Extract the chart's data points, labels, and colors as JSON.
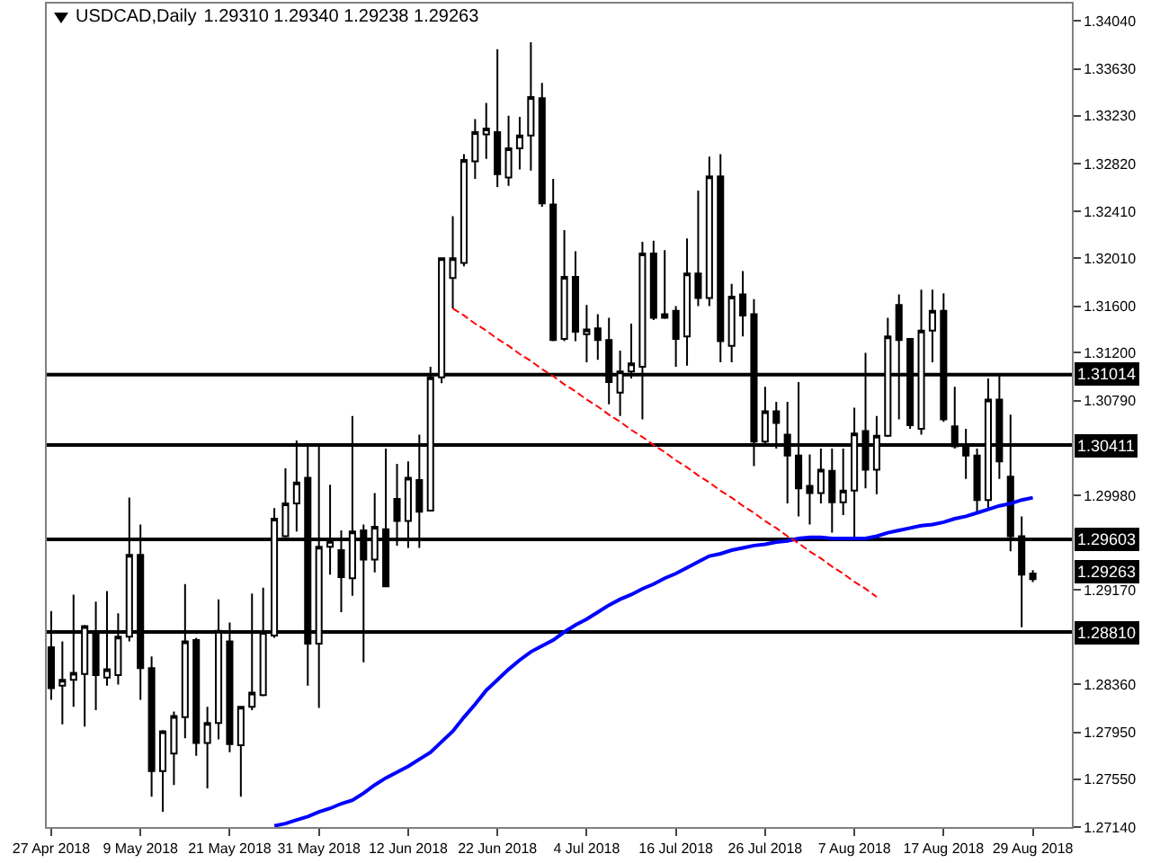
{
  "chart_data": {
    "type": "candlestick",
    "title": "USDCAD,Daily",
    "subtitle": "1.29310 1.29340 1.29238 1.29263",
    "categories": [
      "27 Apr 2018",
      null,
      null,
      null,
      null,
      null,
      null,
      null,
      "9 May 2018",
      null,
      null,
      null,
      null,
      null,
      null,
      null,
      "21 May 2018",
      null,
      null,
      null,
      null,
      null,
      null,
      null,
      "31 May 2018",
      null,
      null,
      null,
      null,
      null,
      null,
      null,
      "12 Jun 2018",
      null,
      null,
      null,
      null,
      null,
      null,
      null,
      "22 Jun 2018",
      null,
      null,
      null,
      null,
      null,
      null,
      null,
      "4 Jul 2018",
      null,
      null,
      null,
      null,
      null,
      null,
      null,
      "16 Jul 2018",
      null,
      null,
      null,
      null,
      null,
      null,
      null,
      "26 Jul 2018",
      null,
      null,
      null,
      null,
      null,
      null,
      null,
      "7 Aug 2018",
      null,
      null,
      null,
      null,
      null,
      null,
      null,
      "17 Aug 2018",
      null,
      null,
      null,
      null,
      null,
      null,
      null,
      "29 Aug 2018"
    ],
    "ohlc": [
      [
        1.2868,
        1.2899,
        1.2823,
        1.2833
      ],
      [
        1.2835,
        1.2873,
        1.2802,
        1.284
      ],
      [
        1.284,
        1.2913,
        1.2817,
        1.2846
      ],
      [
        1.2845,
        1.2887,
        1.28,
        1.2886
      ],
      [
        1.2879,
        1.2907,
        1.2814,
        1.2844
      ],
      [
        1.2842,
        1.2916,
        1.2835,
        1.2849
      ],
      [
        1.2844,
        1.2897,
        1.2836,
        1.2877
      ],
      [
        1.2877,
        1.2996,
        1.2873,
        1.2947
      ],
      [
        1.2947,
        1.2973,
        1.2823,
        1.285
      ],
      [
        1.285,
        1.286,
        1.274,
        1.2762
      ],
      [
        1.2762,
        1.2797,
        1.2727,
        1.2796
      ],
      [
        1.2777,
        1.2813,
        1.275,
        1.2809
      ],
      [
        1.2808,
        1.2922,
        1.279,
        1.2873
      ],
      [
        1.2874,
        1.2876,
        1.2775,
        1.2786
      ],
      [
        1.2786,
        1.2817,
        1.2747,
        1.2803
      ],
      [
        1.2803,
        1.2909,
        1.2789,
        1.2882
      ],
      [
        1.2873,
        1.2889,
        1.2778,
        1.2785
      ],
      [
        1.2784,
        1.2817,
        1.274,
        1.2817
      ],
      [
        1.2817,
        1.2914,
        1.2814,
        1.2829
      ],
      [
        1.2827,
        1.2919,
        1.2826,
        1.2881
      ],
      [
        1.2878,
        1.2987,
        1.2876,
        1.2978
      ],
      [
        1.2963,
        1.3021,
        1.2962,
        1.2991
      ],
      [
        1.2991,
        1.3045,
        1.2967,
        1.3009
      ],
      [
        1.3013,
        1.304,
        1.2835,
        1.2871
      ],
      [
        1.2871,
        1.304,
        1.2816,
        1.2954
      ],
      [
        1.2954,
        1.3007,
        1.293,
        1.2959
      ],
      [
        1.2951,
        1.2968,
        1.2898,
        1.2928
      ],
      [
        1.2927,
        1.3066,
        1.2912,
        1.2967
      ],
      [
        1.2968,
        1.2973,
        1.2855,
        1.2943
      ],
      [
        1.2943,
        1.3,
        1.2932,
        1.2971
      ],
      [
        1.2969,
        1.3038,
        1.292,
        1.292
      ],
      [
        1.2995,
        1.3025,
        1.2955,
        1.2976
      ],
      [
        1.2976,
        1.3027,
        1.2953,
        1.3013
      ],
      [
        1.3011,
        1.305,
        1.2953,
        1.2984
      ],
      [
        1.2985,
        1.3108,
        1.2985,
        1.3099
      ],
      [
        1.3099,
        1.3201,
        1.3094,
        1.3201
      ],
      [
        1.3184,
        1.3237,
        1.3158,
        1.3201
      ],
      [
        1.3197,
        1.329,
        1.3194,
        1.3285
      ],
      [
        1.3284,
        1.332,
        1.3269,
        1.3309
      ],
      [
        1.3307,
        1.3334,
        1.3286,
        1.3312
      ],
      [
        1.3309,
        1.338,
        1.3262,
        1.3273
      ],
      [
        1.327,
        1.3323,
        1.3263,
        1.3295
      ],
      [
        1.3295,
        1.3322,
        1.3277,
        1.3306
      ],
      [
        1.3306,
        1.3386,
        1.3276,
        1.3339
      ],
      [
        1.3338,
        1.3351,
        1.3245,
        1.3248
      ],
      [
        1.3247,
        1.3269,
        1.313,
        1.3131
      ],
      [
        1.3132,
        1.3225,
        1.313,
        1.3185
      ],
      [
        1.3185,
        1.3207,
        1.313,
        1.3138
      ],
      [
        1.3136,
        1.3161,
        1.3112,
        1.314
      ],
      [
        1.3141,
        1.3153,
        1.3114,
        1.3131
      ],
      [
        1.3131,
        1.315,
        1.3076,
        1.3095
      ],
      [
        1.3086,
        1.3122,
        1.3066,
        1.3104
      ],
      [
        1.3104,
        1.3145,
        1.3098,
        1.3111
      ],
      [
        1.3108,
        1.3215,
        1.3063,
        1.3205
      ],
      [
        1.3205,
        1.3216,
        1.3148,
        1.315
      ],
      [
        1.3153,
        1.3208,
        1.3149,
        1.315
      ],
      [
        1.3156,
        1.316,
        1.3108,
        1.3132
      ],
      [
        1.3134,
        1.3218,
        1.3109,
        1.3188
      ],
      [
        1.3188,
        1.3259,
        1.316,
        1.3167
      ],
      [
        1.3167,
        1.3288,
        1.316,
        1.3271
      ],
      [
        1.3271,
        1.329,
        1.3112,
        1.313
      ],
      [
        1.3126,
        1.3179,
        1.3112,
        1.3168
      ],
      [
        1.317,
        1.319,
        1.3134,
        1.3152
      ],
      [
        1.3153,
        1.3166,
        1.3023,
        1.3044
      ],
      [
        1.3044,
        1.3091,
        1.304,
        1.307
      ],
      [
        1.307,
        1.3078,
        1.3038,
        1.306
      ],
      [
        1.305,
        1.3078,
        1.2991,
        1.3032
      ],
      [
        1.3032,
        1.3095,
        1.298,
        1.3004
      ],
      [
        1.3006,
        1.3033,
        1.2973,
        1.3
      ],
      [
        1.3,
        1.3038,
        1.2991,
        1.302
      ],
      [
        1.3019,
        1.3038,
        1.2966,
        1.2992
      ],
      [
        1.2992,
        1.3038,
        1.2981,
        1.3002
      ],
      [
        1.3002,
        1.3073,
        1.2961,
        1.3051
      ],
      [
        1.3053,
        1.312,
        1.3004,
        1.302
      ],
      [
        1.302,
        1.3066,
        1.2999,
        1.3049
      ],
      [
        1.3049,
        1.315,
        1.3048,
        1.3134
      ],
      [
        1.3161,
        1.317,
        1.3063,
        1.3131
      ],
      [
        1.3132,
        1.3132,
        1.3055,
        1.3058
      ],
      [
        1.3055,
        1.3174,
        1.305,
        1.3139
      ],
      [
        1.3139,
        1.3174,
        1.3112,
        1.3156
      ],
      [
        1.3156,
        1.3171,
        1.3061,
        1.3063
      ],
      [
        1.3057,
        1.3091,
        1.3038,
        1.304
      ],
      [
        1.304,
        1.3055,
        1.3012,
        1.3032
      ],
      [
        1.3032,
        1.3038,
        1.2984,
        1.2994
      ],
      [
        1.2994,
        1.3098,
        1.2986,
        1.308
      ],
      [
        1.308,
        1.3102,
        1.3012,
        1.3027
      ],
      [
        1.3014,
        1.3067,
        1.295,
        1.2963
      ],
      [
        1.2963,
        1.298,
        1.2885,
        1.293
      ],
      [
        1.2931,
        1.2934,
        1.29238,
        1.29263
      ]
    ],
    "series": [
      {
        "type": "line",
        "color": "#0000ff",
        "line_style": "solid",
        "values": [
          null,
          null,
          null,
          null,
          null,
          null,
          null,
          null,
          null,
          null,
          null,
          null,
          null,
          null,
          null,
          null,
          null,
          null,
          null,
          null,
          1.2715,
          1.2717,
          1.272,
          1.2723,
          1.2727,
          1.273,
          1.2734,
          1.2737,
          1.2743,
          1.275,
          1.2756,
          1.2761,
          1.2766,
          1.2772,
          1.2778,
          1.2787,
          1.2796,
          1.2808,
          1.2819,
          1.2831,
          1.284,
          1.2849,
          1.2857,
          1.2864,
          1.2869,
          1.2874,
          1.2881,
          1.2887,
          1.2892,
          1.2898,
          1.2904,
          1.2909,
          1.2913,
          1.2918,
          1.2922,
          1.2927,
          1.2931,
          1.2936,
          1.2941,
          1.2946,
          1.2948,
          1.2951,
          1.2953,
          1.2955,
          1.2956,
          1.2958,
          1.2959,
          1.2961,
          1.2962,
          1.2962,
          1.2961,
          1.2961,
          1.2961,
          1.2961,
          1.2963,
          1.2966,
          1.2968,
          1.297,
          1.2972,
          1.2973,
          1.2975,
          1.2978,
          1.298,
          1.2983,
          1.2986,
          1.2989,
          1.2991,
          1.2994,
          1.2996
        ]
      },
      {
        "type": "line",
        "color": "#ff0000",
        "line_style": "dashed",
        "values": [
          null,
          null,
          null,
          null,
          null,
          null,
          null,
          null,
          null,
          null,
          null,
          null,
          null,
          null,
          null,
          null,
          null,
          null,
          null,
          null,
          null,
          null,
          null,
          null,
          null,
          null,
          null,
          null,
          null,
          null,
          null,
          null,
          null,
          null,
          null,
          null,
          1.3158,
          1.3152,
          1.3145,
          1.3139,
          1.3132,
          1.3126,
          1.3119,
          1.3113,
          1.3106,
          1.31,
          1.3093,
          1.3087,
          1.308,
          1.3074,
          1.3067,
          1.3061,
          1.3054,
          1.3048,
          1.3041,
          1.3035,
          1.3028,
          1.3022,
          1.3015,
          1.3009,
          1.3002,
          1.2996,
          1.2989,
          1.2983,
          1.2976,
          1.297,
          1.2963,
          1.2957,
          1.295,
          1.2944,
          1.2937,
          1.2931,
          1.2924,
          1.2918,
          1.2911,
          null,
          null,
          null,
          null,
          null,
          null,
          null,
          null,
          null,
          null,
          null,
          null,
          null,
          null
        ]
      }
    ],
    "ylim": [
      1.2714,
      1.3419
    ],
    "yticks": [
      {
        "value": 1.3404,
        "label": "1.34040"
      },
      {
        "value": 1.3363,
        "label": "1.33630"
      },
      {
        "value": 1.3323,
        "label": "1.33230"
      },
      {
        "value": 1.3282,
        "label": "1.32820"
      },
      {
        "value": 1.3241,
        "label": "1.32410"
      },
      {
        "value": 1.3201,
        "label": "1.32010"
      },
      {
        "value": 1.316,
        "label": "1.31600"
      },
      {
        "value": 1.312,
        "label": "1.31200"
      },
      {
        "value": 1.3079,
        "label": "1.30790"
      },
      {
        "value": 1.2998,
        "label": "1.29980"
      },
      {
        "value": 1.2917,
        "label": "1.29170"
      },
      {
        "value": 1.2836,
        "label": "1.28360"
      },
      {
        "value": 1.2795,
        "label": "1.27950"
      },
      {
        "value": 1.2755,
        "label": "1.27550"
      },
      {
        "value": 1.2714,
        "label": "1.27140"
      }
    ],
    "ref_lines": [
      {
        "axis": "y",
        "value": 1.31014,
        "label": "1.31014",
        "color": "#000000"
      },
      {
        "axis": "y",
        "value": 1.30411,
        "label": "1.30411",
        "color": "#000000"
      },
      {
        "axis": "y",
        "value": 1.29603,
        "label": "1.29603",
        "color": "#000000"
      },
      {
        "axis": "y",
        "value": 1.2881,
        "label": "1.28810",
        "color": "#000000"
      }
    ],
    "annotations": [
      "1.29263"
    ]
  }
}
